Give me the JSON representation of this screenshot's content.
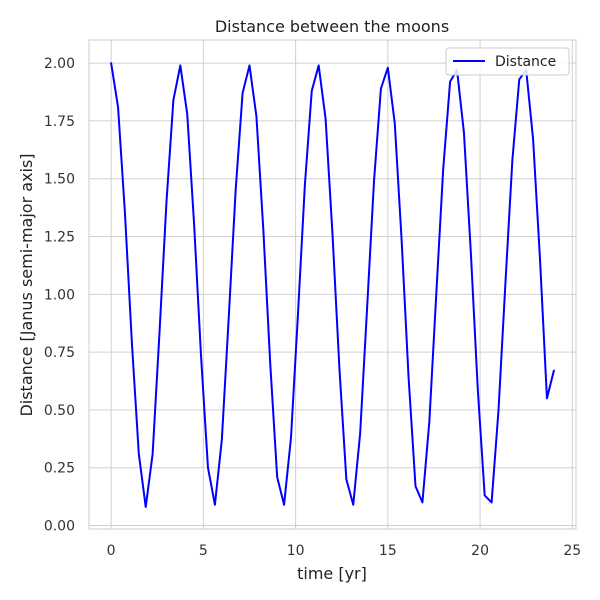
{
  "chart_data": {
    "type": "line",
    "title": "Distance between the moons",
    "xlabel": "time [yr]",
    "ylabel": "Distance [Janus semi-major axis]",
    "xlim": [
      -1.2,
      25.2
    ],
    "ylim": [
      -0.015,
      2.1
    ],
    "xticks": [
      0,
      5,
      10,
      15,
      20,
      25
    ],
    "xtick_labels": [
      "0",
      "5",
      "10",
      "15",
      "20",
      "25"
    ],
    "yticks": [
      0.0,
      0.25,
      0.5,
      0.75,
      1.0,
      1.25,
      1.5,
      1.75,
      2.0
    ],
    "ytick_labels": [
      "0.00",
      "0.25",
      "0.50",
      "0.75",
      "1.00",
      "1.25",
      "1.50",
      "1.75",
      "2.00"
    ],
    "grid": true,
    "legend_position": "top-right",
    "colors": {
      "series": "#0000ff",
      "grid": "#d0d0d0",
      "axes": "#cccccc"
    },
    "series": [
      {
        "name": "Distance",
        "x": [
          0.0,
          0.375,
          0.75,
          1.125,
          1.5,
          1.875,
          2.25,
          2.625,
          3.0,
          3.375,
          3.75,
          4.125,
          4.5,
          4.875,
          5.25,
          5.625,
          6.0,
          6.375,
          6.75,
          7.125,
          7.5,
          7.875,
          8.25,
          8.625,
          9.0,
          9.375,
          9.75,
          10.125,
          10.5,
          10.875,
          11.25,
          11.625,
          12.0,
          12.375,
          12.75,
          13.125,
          13.5,
          13.875,
          14.25,
          14.625,
          15.0,
          15.375,
          15.75,
          16.125,
          16.5,
          16.875,
          17.25,
          17.625,
          18.0,
          18.375,
          18.75,
          19.125,
          19.5,
          19.875,
          20.25,
          20.625,
          21.0,
          21.375,
          21.75,
          22.125,
          22.5,
          22.875,
          23.25,
          23.625,
          24.0
        ],
        "y": [
          2.0,
          1.81,
          1.35,
          0.79,
          0.31,
          0.08,
          0.31,
          0.84,
          1.4,
          1.84,
          1.99,
          1.78,
          1.3,
          0.73,
          0.25,
          0.09,
          0.37,
          0.9,
          1.45,
          1.87,
          1.99,
          1.77,
          1.28,
          0.7,
          0.21,
          0.09,
          0.38,
          0.91,
          1.47,
          1.88,
          1.99,
          1.76,
          1.26,
          0.68,
          0.2,
          0.09,
          0.4,
          0.94,
          1.49,
          1.89,
          1.98,
          1.74,
          1.23,
          0.64,
          0.17,
          0.1,
          0.45,
          1.0,
          1.54,
          1.92,
          1.97,
          1.7,
          1.18,
          0.59,
          0.13,
          0.1,
          0.5,
          1.05,
          1.58,
          1.93,
          1.97,
          1.67,
          1.15,
          0.55,
          0.67
        ]
      }
    ]
  }
}
